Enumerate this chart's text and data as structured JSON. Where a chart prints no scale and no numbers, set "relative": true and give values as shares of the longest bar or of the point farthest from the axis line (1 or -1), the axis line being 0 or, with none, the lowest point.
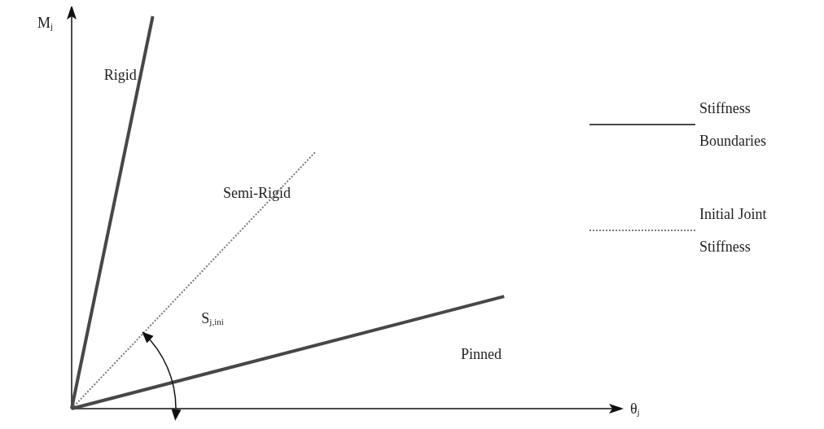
{
  "chart_data": {
    "type": "line",
    "relative": true,
    "xlabel": "θ$_{j}$",
    "ylabel": "M$_{j}$",
    "legend": "right",
    "marker": "none",
    "grid": false,
    "categories": [
      null,
      null,
      null,
      null,
      null,
      null,
      null,
      null,
      null,
      null,
      null,
      null,
      null,
      null,
      null,
      null,
      null,
      null,
      null,
      null,
      null
    ],
    "series": [
      {
        "name": "Stiffness Boundaries",
        "color": "#474747",
        "line_style": "solid",
        "values": [
          0,
          null,
          null,
          1,
          null,
          null,
          null,
          null,
          null,
          null,
          null,
          null,
          null,
          null,
          null,
          null,
          null,
          null,
          null,
          null,
          null
        ]
      },
      {
        "name": "Initial Joint Stiffness",
        "color": "#7a7a7a",
        "line_style": "dotted",
        "values": [
          0,
          null,
          null,
          null,
          null,
          null,
          null,
          null,
          null,
          0.653,
          null,
          null,
          null,
          null,
          null,
          null,
          null,
          null,
          null,
          null,
          null
        ]
      },
      {
        "color": "#474747",
        "line_style": "solid",
        "values": [
          0,
          null,
          null,
          null,
          null,
          null,
          null,
          null,
          null,
          null,
          null,
          null,
          null,
          null,
          null,
          null,
          0.286,
          null,
          null,
          null,
          null
        ]
      }
    ],
    "annotations": [
      "Rigid",
      "Semi-Rigid",
      "Pinned",
      "S$_{j,ini}$"
    ]
  }
}
